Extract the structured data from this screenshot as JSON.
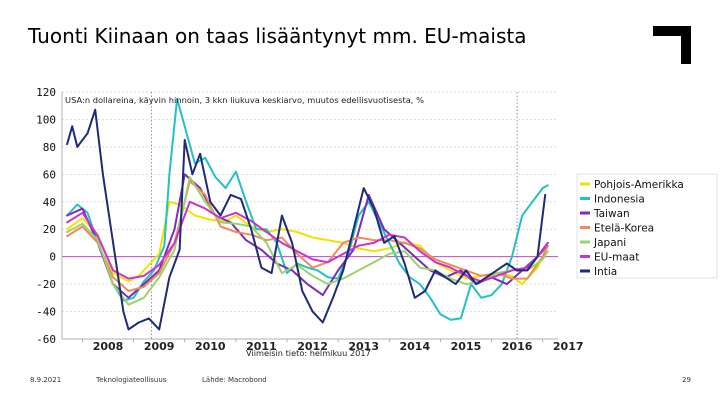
{
  "slide": {
    "title": "Tuonti Kiinaan on taas lisääntynyt mm. EU-maista",
    "footer": {
      "date": "8.9.2021",
      "org": "Teknologiateollisuus",
      "source": "Lähde: Macrobond",
      "page": "29"
    }
  },
  "chart_data": {
    "type": "line",
    "title": "USA:n dollareina, käyvin hinnoin, 3 kkn liukuva keskiarvo, muutos edellisvuotisesta, %",
    "subtitle": "Viimeisin tieto: helmikuu 2017",
    "ylim": [
      -60,
      120
    ],
    "yticks": [
      "120",
      "100",
      "80",
      "60",
      "40",
      "20",
      "0",
      "-20",
      "-40",
      "-60"
    ],
    "ytick_values": [
      120,
      100,
      80,
      60,
      40,
      20,
      0,
      -20,
      -40,
      -60
    ],
    "xlim": [
      2007.6,
      2017.3
    ],
    "xticks": [
      "2008",
      "2009",
      "2010",
      "2011",
      "2012",
      "2013",
      "2014",
      "2015",
      "2016",
      "2017"
    ],
    "xtick_values": [
      2008,
      2009,
      2010,
      2011,
      2012,
      2013,
      2014,
      2015,
      2016,
      2017
    ],
    "grid": true,
    "legend_position": "right",
    "zero_line_color": "#cc44cc",
    "series": [
      {
        "name": "Pohjois-Amerikka",
        "color": "#f2e200",
        "x": [
          2007.7,
          2008.0,
          2008.3,
          2008.6,
          2008.9,
          2009.1,
          2009.3,
          2009.5,
          2009.7,
          2009.9,
          2010.2,
          2010.5,
          2010.8,
          2011.0,
          2011.3,
          2011.6,
          2011.9,
          2012.2,
          2012.5,
          2012.8,
          2013.1,
          2013.4,
          2013.7,
          2014.0,
          2014.3,
          2014.6,
          2014.9,
          2015.2,
          2015.5,
          2015.8,
          2016.1,
          2016.4,
          2016.6,
          2016.9,
          2017.1
        ],
        "y": [
          20,
          28,
          16,
          -12,
          -18,
          -14,
          -6,
          2,
          40,
          38,
          30,
          27,
          26,
          30,
          22,
          18,
          20,
          18,
          14,
          12,
          10,
          6,
          4,
          6,
          10,
          8,
          -4,
          -10,
          -16,
          -14,
          -12,
          -14,
          -20,
          -8,
          8
        ]
      },
      {
        "name": "Indonesia",
        "color": "#22c1c3",
        "x": [
          2007.7,
          2007.9,
          2008.1,
          2008.3,
          2008.6,
          2008.8,
          2009.0,
          2009.2,
          2009.4,
          2009.6,
          2009.7,
          2009.85,
          2010.0,
          2010.2,
          2010.4,
          2010.6,
          2010.8,
          2011.0,
          2011.2,
          2011.4,
          2011.6,
          2011.8,
          2012.0,
          2012.2,
          2012.4,
          2012.6,
          2012.8,
          2013.0,
          2013.2,
          2013.4,
          2013.6,
          2013.8,
          2014.0,
          2014.2,
          2014.4,
          2014.6,
          2014.8,
          2015.0,
          2015.2,
          2015.4,
          2015.6,
          2015.8,
          2016.0,
          2016.2,
          2016.4,
          2016.6,
          2016.8,
          2017.0,
          2017.1
        ],
        "y": [
          30,
          38,
          32,
          10,
          -20,
          -32,
          -30,
          -18,
          -10,
          8,
          60,
          115,
          95,
          68,
          72,
          58,
          50,
          62,
          40,
          20,
          20,
          10,
          -12,
          -5,
          -8,
          -10,
          -15,
          -16,
          2,
          30,
          40,
          25,
          10,
          -5,
          -15,
          -20,
          -30,
          -42,
          -46,
          -45,
          -20,
          -30,
          -28,
          -20,
          0,
          30,
          40,
          50,
          52
        ]
      },
      {
        "name": "Taiwan",
        "color": "#7a2db8",
        "x": [
          2007.7,
          2008.0,
          2008.3,
          2008.6,
          2008.9,
          2009.2,
          2009.5,
          2009.8,
          2010.0,
          2010.3,
          2010.6,
          2010.9,
          2011.2,
          2011.5,
          2011.8,
          2012.1,
          2012.4,
          2012.7,
          2013.0,
          2013.3,
          2013.6,
          2013.9,
          2014.2,
          2014.5,
          2014.8,
          2015.1,
          2015.4,
          2015.7,
          2016.0,
          2016.3,
          2016.6,
          2016.9,
          2017.1
        ],
        "y": [
          30,
          35,
          10,
          -20,
          -30,
          -20,
          -10,
          20,
          60,
          50,
          30,
          25,
          12,
          5,
          -5,
          -10,
          -20,
          -28,
          -10,
          5,
          45,
          20,
          10,
          0,
          -10,
          -15,
          -10,
          -20,
          -15,
          -20,
          -10,
          0,
          10
        ]
      },
      {
        "name": "Etelä-Korea",
        "color": "#f08a5d",
        "x": [
          2007.7,
          2008.0,
          2008.3,
          2008.6,
          2008.9,
          2009.2,
          2009.5,
          2009.8,
          2010.1,
          2010.4,
          2010.7,
          2011.0,
          2011.3,
          2011.6,
          2011.9,
          2012.2,
          2012.5,
          2012.8,
          2013.1,
          2013.4,
          2013.7,
          2014.0,
          2014.3,
          2014.6,
          2014.9,
          2015.2,
          2015.5,
          2015.8,
          2016.1,
          2016.4,
          2016.7,
          2017.0,
          2017.1
        ],
        "y": [
          15,
          22,
          10,
          -15,
          -25,
          -22,
          -12,
          10,
          55,
          45,
          22,
          18,
          16,
          12,
          14,
          2,
          -8,
          -4,
          10,
          14,
          12,
          12,
          10,
          6,
          -2,
          -6,
          -10,
          -14,
          -12,
          -16,
          -16,
          0,
          8
        ]
      },
      {
        "name": "Japani",
        "color": "#9bd36b",
        "x": [
          2007.7,
          2008.0,
          2008.3,
          2008.6,
          2008.9,
          2009.2,
          2009.5,
          2009.8,
          2010.1,
          2010.4,
          2010.7,
          2011.0,
          2011.3,
          2011.6,
          2011.9,
          2012.2,
          2012.5,
          2012.8,
          2013.1,
          2013.4,
          2013.7,
          2014.0,
          2014.3,
          2014.6,
          2014.9,
          2015.2,
          2015.5,
          2015.8,
          2016.1,
          2016.4,
          2016.7,
          2017.0,
          2017.1
        ],
        "y": [
          18,
          24,
          12,
          -20,
          -35,
          -30,
          -15,
          5,
          58,
          40,
          25,
          24,
          22,
          10,
          -12,
          -6,
          -14,
          -20,
          -16,
          -10,
          -4,
          2,
          4,
          -8,
          -10,
          -16,
          -20,
          -18,
          -12,
          -10,
          -10,
          -2,
          4
        ]
      },
      {
        "name": "EU-maat",
        "color": "#cc33cc",
        "x": [
          2007.7,
          2008.0,
          2008.3,
          2008.6,
          2008.9,
          2009.2,
          2009.5,
          2009.8,
          2010.1,
          2010.4,
          2010.7,
          2011.0,
          2011.3,
          2011.6,
          2011.9,
          2012.2,
          2012.5,
          2012.8,
          2013.1,
          2013.4,
          2013.7,
          2014.0,
          2014.3,
          2014.6,
          2014.9,
          2015.2,
          2015.5,
          2015.8,
          2016.1,
          2016.4,
          2016.7,
          2017.0,
          2017.1
        ],
        "y": [
          25,
          32,
          15,
          -10,
          -16,
          -14,
          -6,
          10,
          40,
          35,
          28,
          32,
          26,
          18,
          10,
          4,
          -2,
          -4,
          2,
          8,
          10,
          16,
          14,
          4,
          -4,
          -8,
          -14,
          -18,
          -14,
          -10,
          -8,
          4,
          10
        ]
      },
      {
        "name": "Intia",
        "color": "#1f2a78",
        "x": [
          2007.7,
          2007.8,
          2007.9,
          2008.1,
          2008.25,
          2008.4,
          2008.6,
          2008.8,
          2008.9,
          2009.1,
          2009.3,
          2009.5,
          2009.7,
          2009.9,
          2010.0,
          2010.15,
          2010.3,
          2010.5,
          2010.7,
          2010.9,
          2011.1,
          2011.3,
          2011.5,
          2011.7,
          2011.9,
          2012.1,
          2012.3,
          2012.5,
          2012.7,
          2012.9,
          2013.1,
          2013.3,
          2013.5,
          2013.7,
          2013.9,
          2014.1,
          2014.3,
          2014.5,
          2014.7,
          2014.9,
          2015.1,
          2015.3,
          2015.5,
          2015.7,
          2015.9,
          2016.1,
          2016.3,
          2016.5,
          2016.7,
          2016.9,
          2017.05
        ],
        "y": [
          82,
          95,
          80,
          90,
          107,
          60,
          10,
          -40,
          -53,
          -48,
          -45,
          -53,
          -15,
          5,
          85,
          60,
          75,
          40,
          30,
          45,
          42,
          20,
          -8,
          -12,
          30,
          10,
          -25,
          -40,
          -48,
          -30,
          -10,
          20,
          50,
          35,
          10,
          15,
          -5,
          -30,
          -25,
          -10,
          -15,
          -20,
          -10,
          -20,
          -15,
          -10,
          -5,
          -10,
          -10,
          0,
          45
        ]
      }
    ]
  }
}
